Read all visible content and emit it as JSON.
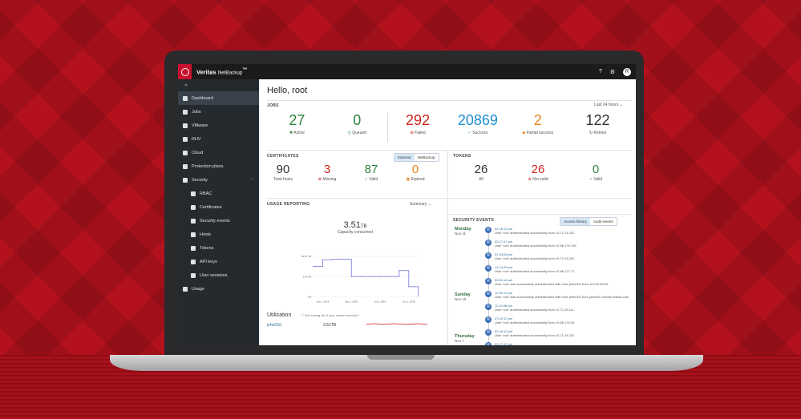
{
  "app": {
    "brand": "Veritas",
    "product": "NetBackup",
    "tm": "™"
  },
  "topbar": {
    "help": "?",
    "settings": "⚙",
    "user": "R"
  },
  "sidebar": {
    "collapse": "«",
    "items": [
      {
        "label": "Dashboard",
        "active": true
      },
      {
        "label": "Jobs"
      },
      {
        "label": "VMware"
      },
      {
        "label": "RHV"
      },
      {
        "label": "Cloud"
      },
      {
        "label": "Protection plans"
      },
      {
        "label": "Security",
        "expanded": true
      },
      {
        "label": "RBAC",
        "sub": true
      },
      {
        "label": "Certificates",
        "sub": true
      },
      {
        "label": "Security events",
        "sub": true
      },
      {
        "label": "Hosts",
        "sub": true
      },
      {
        "label": "Tokens",
        "sub": true
      },
      {
        "label": "API keys",
        "sub": true
      },
      {
        "label": "User sessions",
        "sub": true
      },
      {
        "label": "Usage"
      }
    ]
  },
  "main": {
    "greeting": "Hello, root",
    "jobs": {
      "title": "JOBS",
      "range": "Last 24 hours",
      "items": [
        {
          "num": "27",
          "label": "Active",
          "color": "#2e8540"
        },
        {
          "num": "0",
          "label": "Queued",
          "color": "#2e8540"
        },
        {
          "num": "292",
          "label": "Failed",
          "color": "#d0261e"
        },
        {
          "num": "20869",
          "label": "Success",
          "color": "#1f8fd4"
        },
        {
          "num": "2",
          "label": "Partial success",
          "color": "#e8861a"
        },
        {
          "num": "122",
          "label": "Retries",
          "color": "#333333"
        }
      ]
    },
    "certificates": {
      "title": "CERTIFICATES",
      "toggle": [
        "External",
        "NetBackup"
      ],
      "items": [
        {
          "num": "90",
          "label": "Total hosts",
          "color": "#333"
        },
        {
          "num": "3",
          "label": "Missing",
          "color": "#d0261e"
        },
        {
          "num": "87",
          "label": "Valid",
          "color": "#2e8540"
        },
        {
          "num": "0",
          "label": "Expired",
          "color": "#e8861a"
        }
      ]
    },
    "tokens": {
      "title": "TOKENS",
      "items": [
        {
          "num": "26",
          "label": "All",
          "color": "#333"
        },
        {
          "num": "26",
          "label": "Not valid",
          "color": "#d0261e"
        },
        {
          "num": "0",
          "label": "Valid",
          "color": "#2e8540"
        }
      ]
    },
    "usage": {
      "title": "USAGE REPORTING",
      "dropdown": "Summary",
      "value": "3.51",
      "unit": "TB",
      "caption": "Capacity consumed"
    },
    "utilization": {
      "title": "Utilization",
      "hint": "Not seeing all of your master servers?",
      "host": "john02d",
      "amount": "3.51TB"
    },
    "security_events": {
      "title": "SECURITY EVENTS",
      "toggle": [
        "Access history",
        "Audit events"
      ],
      "days": [
        {
          "day": "Monday",
          "date": "Nov 11"
        },
        {
          "day": "Sunday",
          "date": "Nov 10"
        },
        {
          "day": "Thursday",
          "date": "Nov 7"
        }
      ],
      "events": [
        {
          "time": "02:16:13 pm",
          "text": "User 'root' authenticated successfully from 10.71.24.202"
        },
        {
          "time": "02:17:47 pm",
          "text": "User 'root' authenticated successfully from 10.86.176.135"
        },
        {
          "time": "01:34:08 pm",
          "text": "User 'root' authenticated successfully from 10.71.24.202"
        },
        {
          "time": "12:14:28 pm",
          "text": "User 'root' authenticated successfully from 10.86.177.71"
        },
        {
          "time": "02:50:18 am",
          "text": "User 'root' was successfully authenticated with host 'john02d' from 10.210.60.95"
        },
        {
          "time": "12:32:12 pm",
          "text": "User 'root' was successfully authenticated with host 'john02d' from jones01.vxindia.veritas.com"
        },
        {
          "time": "11:20:58 am",
          "text": "User 'root' authenticated successfully from 10.71.26.111"
        },
        {
          "time": "07:42:12 am",
          "text": "User 'root' authenticated successfully from 10.86.176.00"
        },
        {
          "time": "02:18:12 pm",
          "text": "User 'root' authenticated successfully from 10.71.24.202"
        },
        {
          "time": "02:17:47 pm",
          "text": "User 'root' authenticated successfully from 10.86.176.135"
        }
      ]
    }
  },
  "chart_data": {
    "type": "line",
    "x": [
      "2018-12",
      "2019-01",
      "2019-02",
      "2019-03",
      "2019-04",
      "2019-05",
      "2019-06",
      "2019-07",
      "2019-08",
      "2019-09",
      "2019-10",
      "2019-11"
    ],
    "series": [
      {
        "values": [
          14.4,
          17.5,
          17.8,
          17.8,
          9.6,
          9.6,
          9.6,
          9.6,
          9.6,
          12.4,
          4.8,
          0.4
        ]
      }
    ],
    "ytick_labels": [
      "19.07 TB",
      "9.54 TB",
      "0 B"
    ],
    "xtick_labels": [
      "Jan 1, 2019",
      "Apr 1, 2019",
      "Jul 1, 2019",
      "Oct 1, 2019"
    ],
    "ylim": [
      0,
      21
    ],
    "color": "#6b6fd6"
  }
}
